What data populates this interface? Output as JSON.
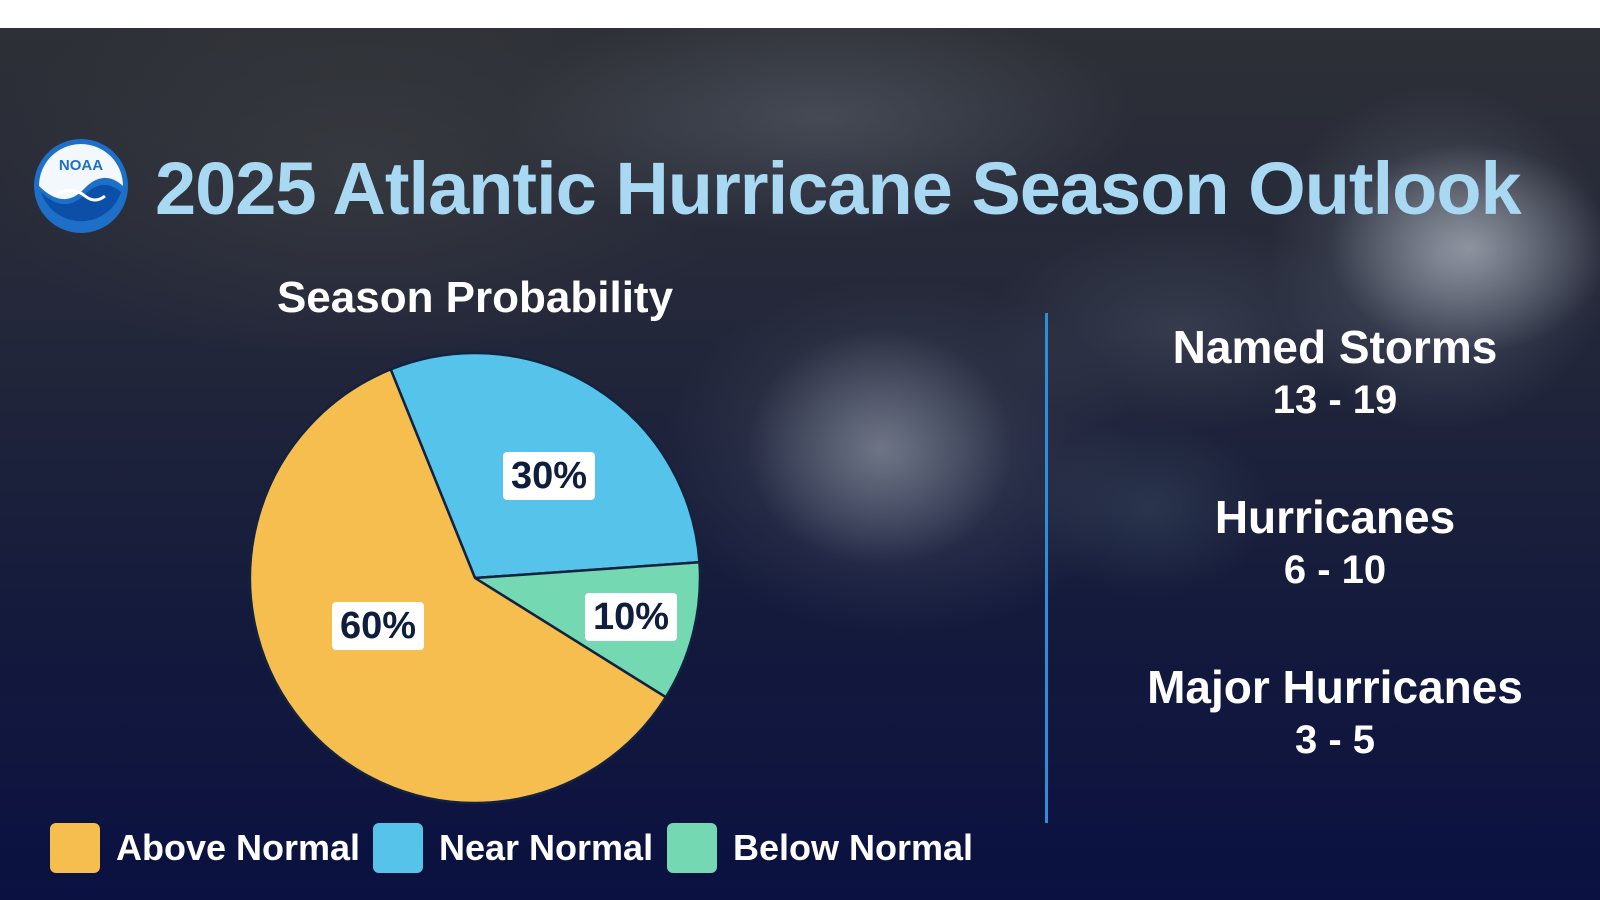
{
  "header": {
    "title": "2025 Atlantic Hurricane Season Outlook",
    "logo_text": "NOAA"
  },
  "colors": {
    "above": "#f6be4f",
    "near": "#56c3ea",
    "below": "#74d8b2",
    "outline": "#12223f",
    "title": "#a9d8f2",
    "divider": "#2e8fd8"
  },
  "chart_data": {
    "type": "pie",
    "title": "Season Probability",
    "slices": [
      {
        "name": "Above Normal",
        "value": 60,
        "label": "60%",
        "color": "#f6be4f"
      },
      {
        "name": "Near Normal",
        "value": 30,
        "label": "30%",
        "color": "#56c3ea"
      },
      {
        "name": "Below Normal",
        "value": 10,
        "label": "10%",
        "color": "#74d8b2"
      }
    ],
    "legend_placement": "bottom"
  },
  "stats": [
    {
      "label": "Named Storms",
      "value": "13 - 19"
    },
    {
      "label": "Hurricanes",
      "value": "6 - 10"
    },
    {
      "label": "Major Hurricanes",
      "value": "3 - 5"
    }
  ]
}
